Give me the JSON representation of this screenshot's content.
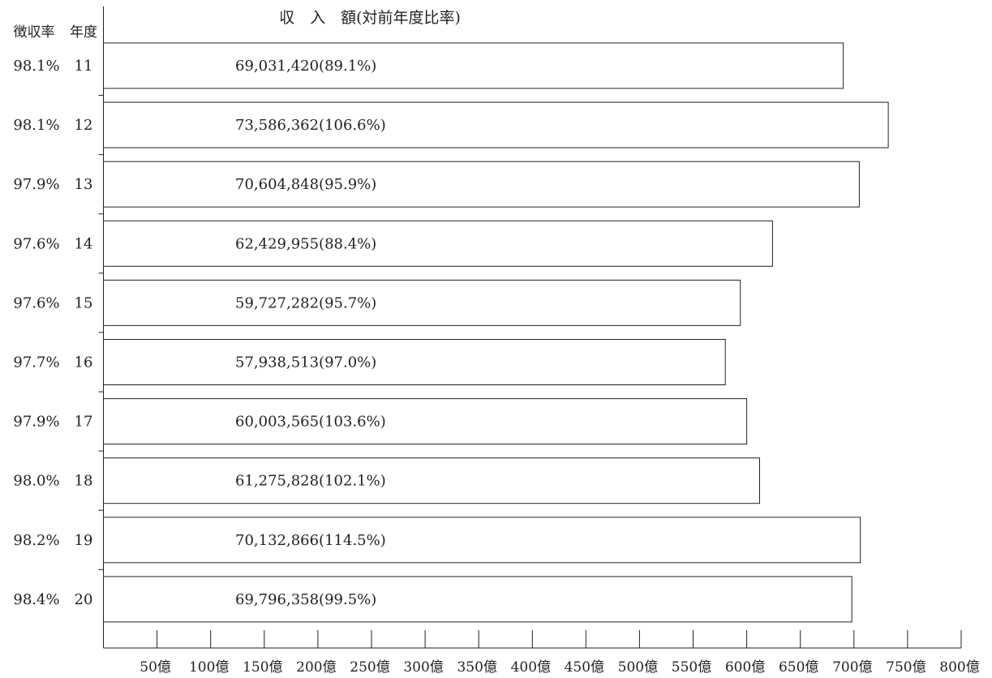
{
  "chart_data": {
    "type": "bar",
    "orientation": "horizontal",
    "title": "収　入　額(対前年度比率)",
    "row_headers": {
      "rate": "徴収率",
      "year": "年度"
    },
    "xlim": [
      0,
      8000000000
    ],
    "x_ticks": [
      500000000,
      1000000000,
      1500000000,
      2000000000,
      2500000000,
      3000000000,
      3500000000,
      4000000000,
      4500000000,
      5000000000,
      5500000000,
      6000000000,
      6500000000,
      7000000000,
      7500000000,
      8000000000
    ],
    "x_tick_labels": [
      "50億",
      "100億",
      "150億",
      "200億",
      "250億",
      "300億",
      "350億",
      "400億",
      "450億",
      "500億",
      "550億",
      "600億",
      "650億",
      "700億",
      "750億",
      "800億"
    ],
    "categories": [
      "11",
      "12",
      "13",
      "14",
      "15",
      "16",
      "17",
      "18",
      "19",
      "20"
    ],
    "rates": [
      "98.1%",
      "98.1%",
      "97.9%",
      "97.6%",
      "97.6%",
      "97.7%",
      "97.9%",
      "98.0%",
      "98.2%",
      "98.4%"
    ],
    "values": [
      6900000000,
      7320000000,
      7050000000,
      6240000000,
      5940000000,
      5800000000,
      6000000000,
      6120000000,
      7060000000,
      6980000000
    ],
    "bar_labels": [
      "69,031,420(89.1%)",
      "73,586,362(106.6%)",
      "70,604,848(95.9%)",
      "62,429,955(88.4%)",
      "59,727,282(95.7%)",
      "57,938,513(97.0%)",
      "60,003,565(103.6%)",
      "61,275,828(102.1%)",
      "70,132,866(114.5%)",
      "69,796,358(99.5%)"
    ],
    "grid": false,
    "legend": "none",
    "colors": {
      "bar_fill": "#ffffff",
      "stroke": "#231f20"
    }
  }
}
